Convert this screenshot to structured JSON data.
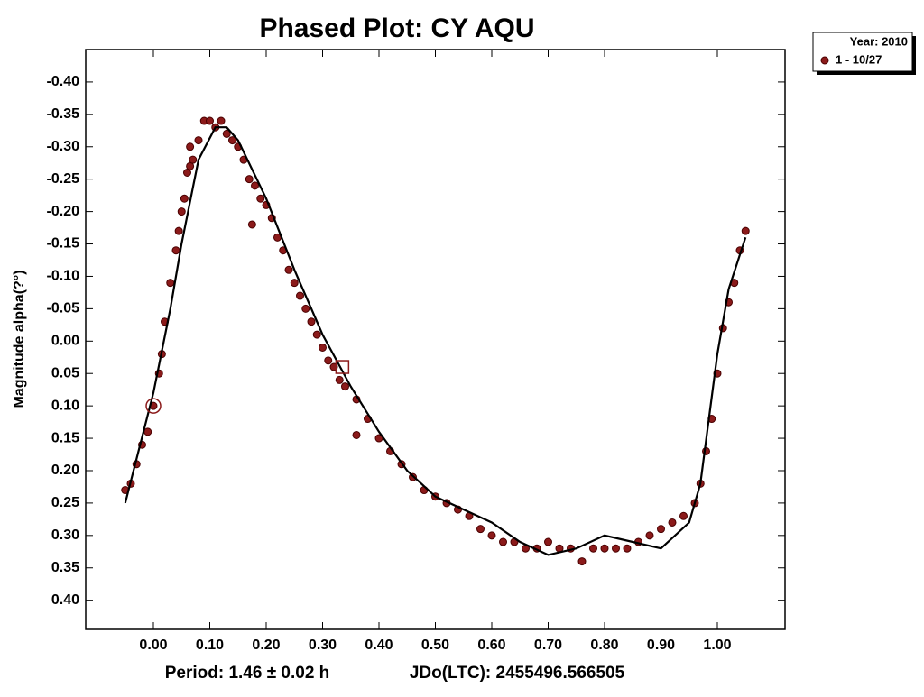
{
  "chart_data": {
    "type": "scatter",
    "title": "Phased Plot: CY AQU",
    "y_label": "Magnitude alpha(?°)",
    "footer_period": "Period: 1.46 ± 0.02 h",
    "footer_epoch": "JDo(LTC): 2455496.566505",
    "legend_title": "Year: 2010",
    "legend": "top-right-outside",
    "xlim": [
      -0.12,
      1.12
    ],
    "ylim": [
      -0.45,
      0.445
    ],
    "y_inverted": true,
    "xticks": [
      {
        "value": 0,
        "label": "0.00"
      },
      {
        "value": 0.1,
        "label": "0.10"
      },
      {
        "value": 0.2,
        "label": "0.20"
      },
      {
        "value": 0.3,
        "label": "0.30"
      },
      {
        "value": 0.4,
        "label": "0.40"
      },
      {
        "value": 0.5,
        "label": "0.50"
      },
      {
        "value": 0.6,
        "label": "0.60"
      },
      {
        "value": 0.7,
        "label": "0.70"
      },
      {
        "value": 0.8,
        "label": "0.80"
      },
      {
        "value": 0.9,
        "label": "0.90"
      },
      {
        "value": 1,
        "label": "1.00"
      }
    ],
    "yticks": [
      {
        "value": -0.4,
        "label": "-0.40"
      },
      {
        "value": -0.35,
        "label": "-0.35"
      },
      {
        "value": -0.3,
        "label": "-0.30"
      },
      {
        "value": -0.25,
        "label": "-0.25"
      },
      {
        "value": -0.2,
        "label": "-0.20"
      },
      {
        "value": -0.15,
        "label": "-0.15"
      },
      {
        "value": -0.1,
        "label": "-0.10"
      },
      {
        "value": -0.05,
        "label": "-0.05"
      },
      {
        "value": 0,
        "label": "0.00"
      },
      {
        "value": 0.05,
        "label": "0.05"
      },
      {
        "value": 0.1,
        "label": "0.10"
      },
      {
        "value": 0.15,
        "label": "0.15"
      },
      {
        "value": 0.2,
        "label": "0.20"
      },
      {
        "value": 0.25,
        "label": "0.25"
      },
      {
        "value": 0.3,
        "label": "0.30"
      },
      {
        "value": 0.35,
        "label": "0.35"
      },
      {
        "value": 0.4,
        "label": "0.40"
      }
    ],
    "series": [
      {
        "name": "1 - 10/27",
        "color": "#8b1a1a",
        "x": [
          -0.05,
          -0.04,
          -0.03,
          -0.02,
          -0.01,
          0.0,
          0.01,
          0.015,
          0.02,
          0.03,
          0.04,
          0.045,
          0.05,
          0.055,
          0.06,
          0.065,
          0.07,
          0.065,
          0.08,
          0.09,
          0.1,
          0.11,
          0.12,
          0.13,
          0.14,
          0.15,
          0.16,
          0.17,
          0.18,
          0.175,
          0.19,
          0.2,
          0.21,
          0.22,
          0.23,
          0.24,
          0.25,
          0.26,
          0.27,
          0.28,
          0.29,
          0.3,
          0.31,
          0.32,
          0.33,
          0.34,
          0.36,
          0.36,
          0.38,
          0.4,
          0.42,
          0.44,
          0.46,
          0.48,
          0.5,
          0.52,
          0.54,
          0.56,
          0.58,
          0.6,
          0.62,
          0.64,
          0.66,
          0.68,
          0.7,
          0.72,
          0.74,
          0.76,
          0.78,
          0.8,
          0.82,
          0.84,
          0.86,
          0.88,
          0.9,
          0.92,
          0.94,
          0.96,
          0.97,
          0.98,
          0.99,
          1.0,
          1.01,
          1.02,
          1.03,
          1.04,
          1.05
        ],
        "values": [
          0.23,
          0.22,
          0.19,
          0.16,
          0.14,
          0.1,
          0.05,
          0.02,
          -0.03,
          -0.09,
          -0.14,
          -0.17,
          -0.2,
          -0.22,
          -0.26,
          -0.27,
          -0.28,
          -0.3,
          -0.31,
          -0.34,
          -0.34,
          -0.33,
          -0.34,
          -0.32,
          -0.31,
          -0.3,
          -0.28,
          -0.25,
          -0.24,
          -0.18,
          -0.22,
          -0.21,
          -0.19,
          -0.16,
          -0.14,
          -0.11,
          -0.09,
          -0.07,
          -0.05,
          -0.03,
          -0.01,
          0.01,
          0.03,
          0.04,
          0.06,
          0.07,
          0.09,
          0.145,
          0.12,
          0.15,
          0.17,
          0.19,
          0.21,
          0.23,
          0.24,
          0.25,
          0.26,
          0.27,
          0.29,
          0.3,
          0.31,
          0.31,
          0.32,
          0.32,
          0.31,
          0.32,
          0.32,
          0.34,
          0.32,
          0.32,
          0.32,
          0.32,
          0.31,
          0.3,
          0.29,
          0.28,
          0.27,
          0.25,
          0.22,
          0.17,
          0.12,
          0.05,
          -0.02,
          -0.06,
          -0.09,
          -0.14,
          -0.17
        ]
      }
    ],
    "fit": {
      "color": "#000000",
      "x": [
        -0.05,
        0.0,
        0.03,
        0.05,
        0.08,
        0.11,
        0.13,
        0.15,
        0.2,
        0.25,
        0.3,
        0.35,
        0.4,
        0.45,
        0.5,
        0.55,
        0.6,
        0.65,
        0.7,
        0.75,
        0.8,
        0.85,
        0.9,
        0.95,
        0.97,
        1.0,
        1.02,
        1.05
      ],
      "values": [
        0.25,
        0.08,
        -0.05,
        -0.15,
        -0.28,
        -0.33,
        -0.33,
        -0.31,
        -0.22,
        -0.11,
        -0.01,
        0.07,
        0.14,
        0.2,
        0.24,
        0.26,
        0.28,
        0.31,
        0.33,
        0.32,
        0.3,
        0.31,
        0.32,
        0.28,
        0.22,
        0.02,
        -0.08,
        -0.16
      ]
    },
    "markers": [
      {
        "shape": "circle",
        "x": 0,
        "y": 0.1
      },
      {
        "shape": "square",
        "x": 0.335,
        "y": 0.04
      }
    ]
  }
}
